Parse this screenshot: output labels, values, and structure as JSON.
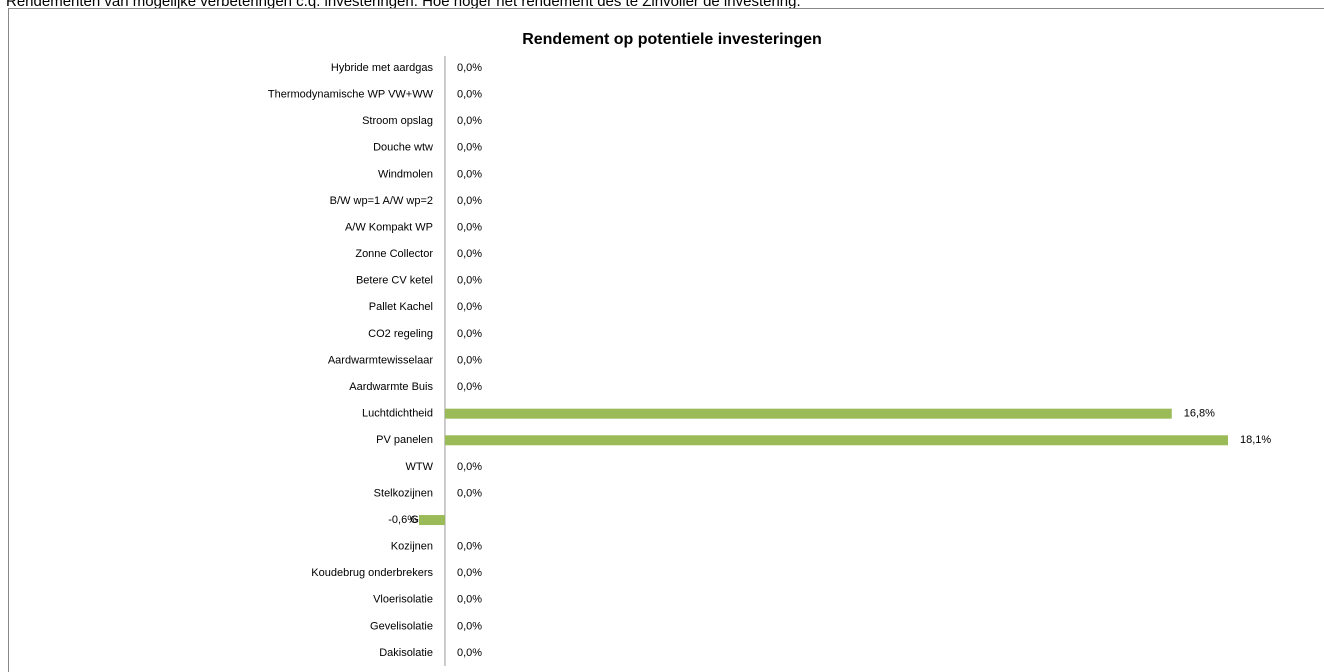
{
  "caption": "Rendementen van mogelijke verbeteringen c.q. investeringen. Hoe hoger het rendement des te Zinvoller de investering.",
  "chart_data": {
    "type": "bar",
    "orientation": "horizontal",
    "title": "Rendement op potentiele investeringen",
    "color": "#9bbb59",
    "categories": [
      "Hybride met aardgas",
      "Thermodynamische WP VW+WW",
      "Stroom opslag",
      "Douche wtw",
      "Windmolen",
      "B/W wp=1 A/W wp=2",
      "A/W Kompakt WP",
      "Zonne Collector",
      "Betere CV ketel",
      "Pallet Kachel",
      "CO2 regeling",
      "Aardwarmtewisselaar",
      "Aardwarmte Buis",
      "Luchtdichtheid",
      "PV panelen",
      "WTW",
      "Stelkozijnen",
      "Glas",
      "Kozijnen",
      "Koudebrug onderbrekers",
      "Vloerisolatie",
      "Gevelisolatie",
      "Dakisolatie"
    ],
    "values": [
      0,
      0,
      0,
      0,
      0,
      0,
      0,
      0,
      0,
      0,
      0,
      0,
      0,
      16.8,
      18.1,
      0,
      0,
      -0.6,
      0,
      0,
      0,
      0,
      0
    ],
    "value_labels": [
      "0,0%",
      "0,0%",
      "0,0%",
      "0,0%",
      "0,0%",
      "0,0%",
      "0,0%",
      "0,0%",
      "0,0%",
      "0,0%",
      "0,0%",
      "0,0%",
      "0,0%",
      "16,8%",
      "18,1%",
      "0,0%",
      "0,0%",
      "-0,6%",
      "0,0%",
      "0,0%",
      "0,0%",
      "0,0%",
      "0,0%"
    ]
  }
}
